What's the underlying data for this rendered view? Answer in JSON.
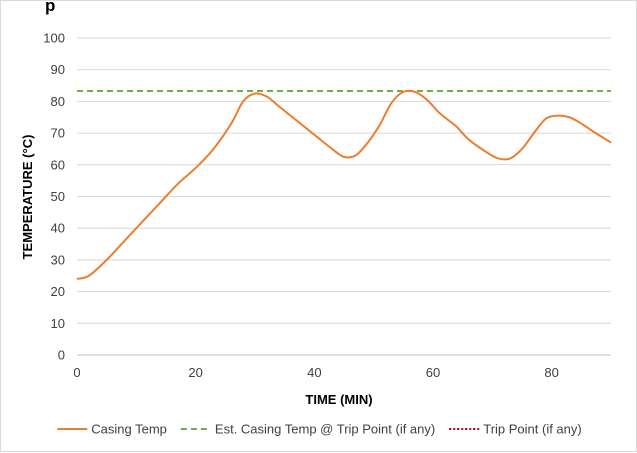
{
  "chart_data": {
    "type": "line",
    "title": "",
    "title_fragment": "p",
    "xlabel": "TIME (MIN)",
    "ylabel": "TEMPERATURE (°C)",
    "xlim": [
      0,
      90
    ],
    "ylim": [
      0,
      100
    ],
    "x_ticks": [
      "0",
      "20",
      "40",
      "60",
      "80"
    ],
    "y_ticks": [
      "0",
      "10",
      "20",
      "30",
      "40",
      "50",
      "60",
      "70",
      "80",
      "90",
      "100"
    ],
    "grid": "horizontal",
    "legend_position": "bottom",
    "series": [
      {
        "name": "Casing Temp",
        "color": "#ED7D31",
        "style": "solid",
        "x": [
          0,
          2,
          5,
          8,
          11,
          14,
          17,
          20,
          23,
          26,
          28,
          30,
          32,
          34,
          37,
          40,
          43,
          45,
          47,
          49,
          51,
          53,
          55,
          57,
          59,
          61,
          63,
          64,
          66,
          69,
          71,
          73,
          75,
          77,
          79,
          81,
          83,
          85,
          87,
          90
        ],
        "y": [
          24,
          25,
          30,
          36,
          42,
          48,
          54,
          59,
          65,
          73,
          80,
          82.5,
          81.5,
          78.5,
          74,
          69.5,
          65,
          62.5,
          63,
          67,
          72.5,
          79.5,
          83,
          83,
          80.5,
          76.5,
          73.5,
          72,
          68,
          64,
          62,
          62,
          65,
          70,
          74.5,
          75.5,
          75,
          73,
          70.5,
          67
        ]
      },
      {
        "name": "Est. Casing Temp @ Trip Point (if any)",
        "color": "#70AD47",
        "style": "dashed",
        "x": [
          0,
          90
        ],
        "y": [
          83.3,
          83.3
        ]
      },
      {
        "name": "Trip Point (if any)",
        "color": "#C00000",
        "style": "dotted",
        "x": [],
        "y": []
      }
    ]
  }
}
